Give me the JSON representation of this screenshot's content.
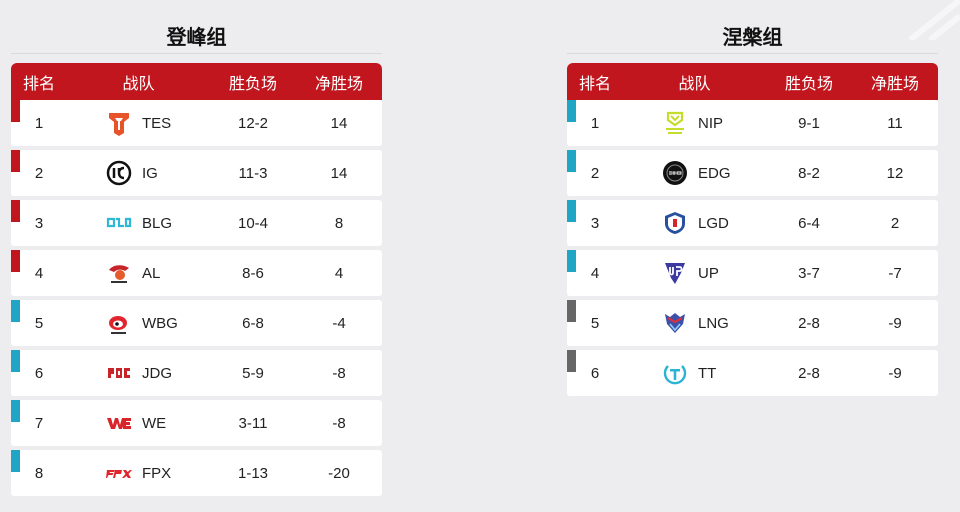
{
  "groups": [
    {
      "title": "登峰组",
      "headers": {
        "rank": "排名",
        "team": "战队",
        "record": "胜负场",
        "net": "净胜场"
      },
      "rows": [
        {
          "rank": "1",
          "team": "TES",
          "record": "12-2",
          "net": "14",
          "marker": "red",
          "logo": "tes-logo-icon"
        },
        {
          "rank": "2",
          "team": "IG",
          "record": "11-3",
          "net": "14",
          "marker": "red",
          "logo": "ig-logo-icon"
        },
        {
          "rank": "3",
          "team": "BLG",
          "record": "10-4",
          "net": "8",
          "marker": "red",
          "logo": "blg-logo-icon"
        },
        {
          "rank": "4",
          "team": "AL",
          "record": "8-6",
          "net": "4",
          "marker": "red",
          "logo": "al-logo-icon"
        },
        {
          "rank": "5",
          "team": "WBG",
          "record": "6-8",
          "net": "-4",
          "marker": "blue",
          "logo": "wbg-logo-icon"
        },
        {
          "rank": "6",
          "team": "JDG",
          "record": "5-9",
          "net": "-8",
          "marker": "blue",
          "logo": "jdg-logo-icon"
        },
        {
          "rank": "7",
          "team": "WE",
          "record": "3-11",
          "net": "-8",
          "marker": "blue",
          "logo": "we-logo-icon"
        },
        {
          "rank": "8",
          "team": "FPX",
          "record": "1-13",
          "net": "-20",
          "marker": "blue",
          "logo": "fpx-logo-icon"
        }
      ]
    },
    {
      "title": "涅槃组",
      "headers": {
        "rank": "排名",
        "team": "战队",
        "record": "胜负场",
        "net": "净胜场"
      },
      "rows": [
        {
          "rank": "1",
          "team": "NIP",
          "record": "9-1",
          "net": "11",
          "marker": "blue",
          "logo": "nip-logo-icon"
        },
        {
          "rank": "2",
          "team": "EDG",
          "record": "8-2",
          "net": "12",
          "marker": "blue",
          "logo": "edg-logo-icon"
        },
        {
          "rank": "3",
          "team": "LGD",
          "record": "6-4",
          "net": "2",
          "marker": "blue",
          "logo": "lgd-logo-icon"
        },
        {
          "rank": "4",
          "team": "UP",
          "record": "3-7",
          "net": "-7",
          "marker": "blue",
          "logo": "up-logo-icon"
        },
        {
          "rank": "5",
          "team": "LNG",
          "record": "2-8",
          "net": "-9",
          "marker": "gray",
          "logo": "lng-logo-icon"
        },
        {
          "rank": "6",
          "team": "TT",
          "record": "2-8",
          "net": "-9",
          "marker": "gray",
          "logo": "tt-logo-icon"
        }
      ]
    }
  ],
  "colors": {
    "header": "#c2161e",
    "advance": "#c2161e",
    "mid": "#21a5c4",
    "out": "#666666",
    "background": "#ededf0"
  }
}
